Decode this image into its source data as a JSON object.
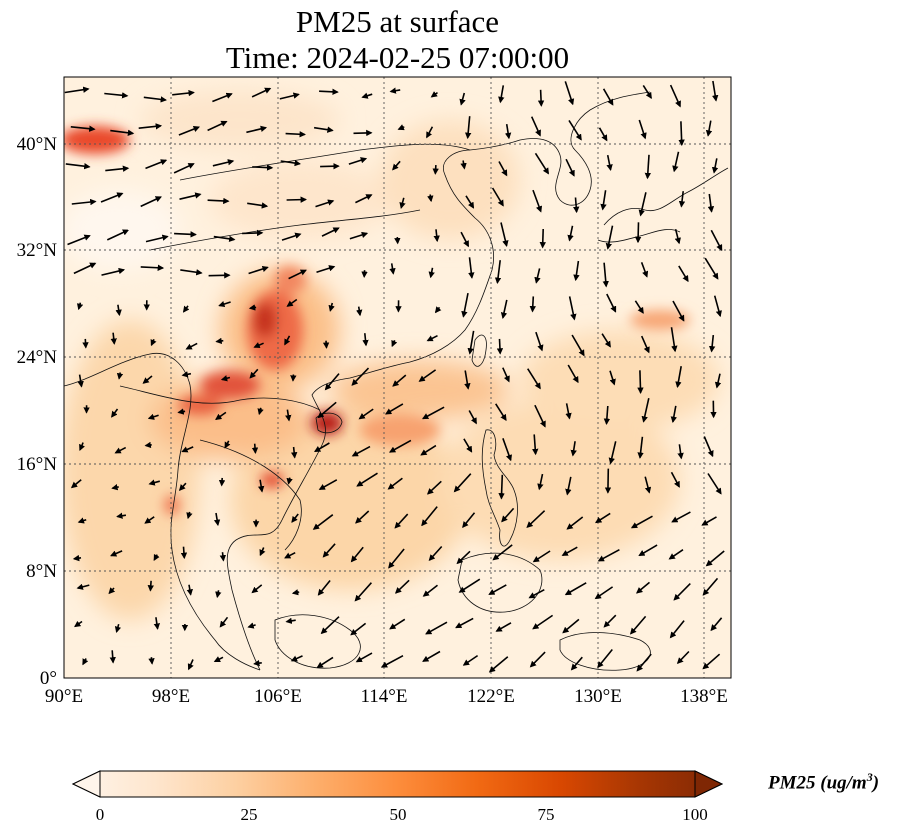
{
  "title": {
    "line1": "PM25 at surface",
    "line2": "Time: 2024-02-25 07:00:00"
  },
  "map": {
    "lon_range": [
      90,
      140
    ],
    "lat_range": [
      0,
      45
    ],
    "lon_ticks": [
      "90°E",
      "98°E",
      "106°E",
      "114°E",
      "122°E",
      "130°E",
      "138°E"
    ],
    "lat_ticks": [
      "0°",
      "8°N",
      "16°N",
      "24°N",
      "32°N",
      "40°N"
    ],
    "gridlines": true,
    "field": "PM25",
    "overlay": "wind vectors (arrows)"
  },
  "colorbar": {
    "label_main": "PM25 (ug/m",
    "label_sup": "3",
    "label_close": ")",
    "ticks": [
      "0",
      "25",
      "50",
      "75",
      "100"
    ],
    "range": [
      0,
      100
    ],
    "extend": "both",
    "colormap": [
      "#fff5eb",
      "#fee6ce",
      "#fdd0a2",
      "#fdae6b",
      "#fd8d3c",
      "#f16913",
      "#d94801",
      "#a63603",
      "#7f2704"
    ]
  },
  "colors": {
    "background_low": "#fff3e3",
    "high": "#7f0000",
    "coast": "#111111",
    "arrow": "#000000"
  }
}
